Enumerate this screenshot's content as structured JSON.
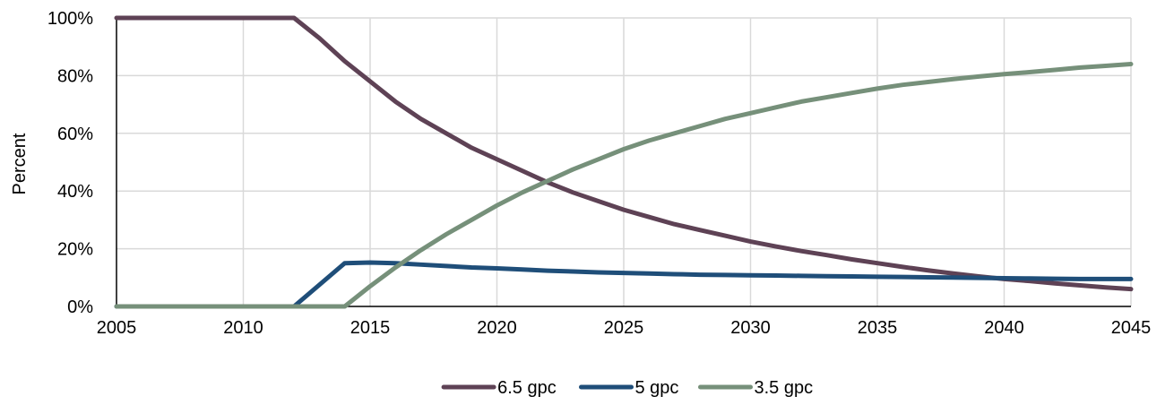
{
  "chart_data": {
    "type": "line",
    "title": "",
    "xlabel": "",
    "ylabel": "Percent",
    "xlim": [
      2005,
      2045
    ],
    "ylim": [
      0,
      100
    ],
    "x_ticks": [
      2005,
      2010,
      2015,
      2020,
      2025,
      2030,
      2035,
      2040,
      2045
    ],
    "x_tick_labels": [
      "2005",
      "2010",
      "2015",
      "2020",
      "2025",
      "2030",
      "2035",
      "2040",
      "2045"
    ],
    "y_ticks": [
      0,
      20,
      40,
      60,
      80,
      100
    ],
    "y_tick_labels": [
      "0%",
      "20%",
      "40%",
      "60%",
      "80%",
      "100%"
    ],
    "grid": true,
    "legend_position": "bottom-center",
    "x": [
      2005,
      2006,
      2007,
      2008,
      2009,
      2010,
      2011,
      2012,
      2013,
      2014,
      2015,
      2016,
      2017,
      2018,
      2019,
      2020,
      2021,
      2022,
      2023,
      2024,
      2025,
      2026,
      2027,
      2028,
      2029,
      2030,
      2031,
      2032,
      2033,
      2034,
      2035,
      2036,
      2037,
      2038,
      2039,
      2040,
      2041,
      2042,
      2043,
      2044,
      2045
    ],
    "series": [
      {
        "name": "6.5 gpc",
        "color": "#5e4255",
        "values": [
          100,
          100,
          100,
          100,
          100,
          100,
          100,
          100,
          93,
          85,
          78,
          71,
          65,
          60,
          55,
          51,
          47,
          43,
          39.5,
          36.5,
          33.5,
          31,
          28.5,
          26.5,
          24.5,
          22.5,
          20.8,
          19.2,
          17.8,
          16.3,
          15,
          13.7,
          12.5,
          11.4,
          10.4,
          9.5,
          8.8,
          8,
          7.3,
          6.6,
          6
        ]
      },
      {
        "name": "5 gpc",
        "color": "#1f4e79",
        "values": [
          0,
          0,
          0,
          0,
          0,
          0,
          0,
          0,
          7.5,
          15,
          15.2,
          15,
          14.5,
          14,
          13.5,
          13.2,
          12.8,
          12.4,
          12.1,
          11.8,
          11.6,
          11.4,
          11.2,
          11,
          10.9,
          10.8,
          10.7,
          10.6,
          10.5,
          10.4,
          10.3,
          10.2,
          10.1,
          10,
          9.9,
          9.8,
          9.7,
          9.6,
          9.5,
          9.5,
          9.5
        ]
      },
      {
        "name": "3.5 gpc",
        "color": "#76907a",
        "values": [
          0,
          0,
          0,
          0,
          0,
          0,
          0,
          0,
          0,
          0,
          7,
          13.5,
          19.5,
          25,
          30,
          35,
          39.5,
          43.5,
          47.5,
          51,
          54.5,
          57.5,
          60,
          62.5,
          65,
          67,
          69,
          71,
          72.5,
          74,
          75.5,
          76.8,
          77.8,
          78.8,
          79.7,
          80.5,
          81.2,
          82,
          82.8,
          83.4,
          84
        ]
      }
    ]
  }
}
